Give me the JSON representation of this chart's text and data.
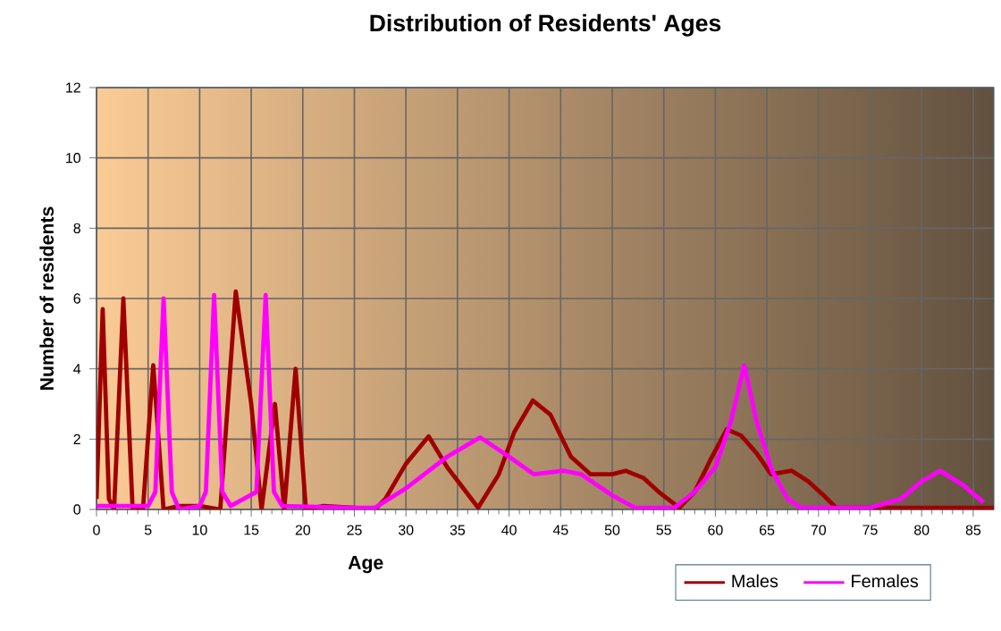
{
  "chart_data": {
    "type": "line",
    "title": "Distribution of Residents' Ages",
    "xlabel": "Age",
    "ylabel": "Number of residents",
    "xlim": [
      0,
      87
    ],
    "xticks": [
      0,
      5,
      10,
      15,
      20,
      25,
      30,
      35,
      40,
      45,
      50,
      55,
      60,
      65,
      70,
      75,
      80,
      85
    ],
    "ylim": [
      0,
      12
    ],
    "yticks": [
      0,
      2,
      4,
      6,
      8,
      10,
      12
    ],
    "grid": true,
    "legend": "bottom right",
    "series": [
      {
        "name": "Males",
        "color": "#a00000",
        "x": [
          0,
          0.6,
          1.2,
          1.7,
          2.6,
          3.5,
          4.5,
          5.5,
          6.5,
          8,
          10,
          12,
          13.5,
          15,
          16,
          17.3,
          18.2,
          19.3,
          20.3,
          22,
          25,
          27,
          28,
          30,
          32.2,
          34,
          37,
          39,
          40.5,
          42.3,
          44,
          46,
          47.9,
          50,
          51.3,
          53,
          54.5,
          56.5,
          58,
          59.5,
          61.1,
          62.5,
          64,
          65.4,
          67.4,
          69,
          70.5,
          71.7,
          75,
          80,
          87
        ],
        "values": [
          0.3,
          5.7,
          0.3,
          0,
          6,
          0,
          0,
          4.1,
          0,
          0.1,
          0.1,
          0,
          6.2,
          3,
          0,
          3,
          0,
          4,
          0,
          0.1,
          0.05,
          0,
          0.3,
          1.3,
          2.08,
          1.2,
          0.05,
          1,
          2.2,
          3.1,
          2.7,
          1.5,
          1,
          1,
          1.1,
          0.9,
          0.5,
          0.05,
          0.5,
          1.4,
          2.28,
          2.1,
          1.6,
          1,
          1.1,
          0.8,
          0.4,
          0.05,
          0.05,
          0.05,
          0.05
        ]
      },
      {
        "name": "Females",
        "color": "#ff00ff",
        "x": [
          0,
          5,
          5.7,
          6.5,
          7.3,
          8,
          10,
          10.6,
          11.4,
          12.2,
          13,
          15.5,
          16.4,
          17.2,
          18,
          25,
          27,
          30,
          34,
          37.2,
          40,
          42.4,
          45.3,
          47,
          50,
          52.2,
          56,
          58,
          60,
          61.5,
          62.8,
          64,
          65.5,
          67,
          68.3,
          75,
          78,
          80,
          81.8,
          84,
          86
        ],
        "values": [
          0.1,
          0.1,
          0.5,
          6,
          0.5,
          0,
          0.1,
          0.5,
          6.1,
          0.5,
          0.1,
          0.5,
          6.1,
          0.5,
          0.1,
          0.05,
          0.05,
          0.6,
          1.5,
          2.05,
          1.5,
          1,
          1.1,
          1,
          0.4,
          0.05,
          0.05,
          0.5,
          1.2,
          2.5,
          4.1,
          2.5,
          1.1,
          0.3,
          0.05,
          0.05,
          0.3,
          0.8,
          1.1,
          0.7,
          0.2
        ]
      }
    ]
  }
}
